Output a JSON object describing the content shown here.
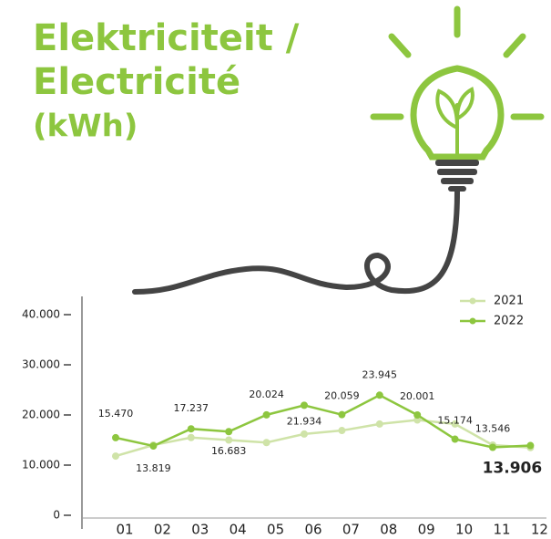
{
  "chart_data": {
    "type": "line",
    "title": "Elektriciteit /",
    "subtitle": "Electricité",
    "unit": "(kWh)",
    "categories": [
      "01",
      "02",
      "03",
      "04",
      "05",
      "06",
      "07",
      "08",
      "09",
      "10",
      "11",
      "12"
    ],
    "series": [
      {
        "name": "2021",
        "color": "#cfe3a8",
        "values": [
          11800,
          14000,
          15500,
          15000,
          14500,
          16200,
          16900,
          18200,
          19000,
          18200,
          14000,
          13500
        ]
      },
      {
        "name": "2022",
        "color": "#8dc63f",
        "values": [
          15470,
          13819,
          17237,
          16683,
          20024,
          21934,
          20059,
          23945,
          20001,
          15174,
          13546,
          13906
        ],
        "value_labels": [
          "15.470",
          "13.819",
          "17.237",
          "16.683",
          "20.024",
          "21.934",
          "20.059",
          "23.945",
          "20.001",
          "15.174",
          "13.546",
          "13.906"
        ]
      }
    ],
    "ylim": [
      0,
      42000
    ],
    "yticks": [
      0,
      {
        "value": 10000,
        "label": "10.000"
      },
      {
        "value": 20000,
        "label": "20.000"
      },
      {
        "value": 30000,
        "label": "30.000"
      },
      {
        "value": 40000,
        "label": "40.000"
      }
    ],
    "legend": "top-right"
  }
}
